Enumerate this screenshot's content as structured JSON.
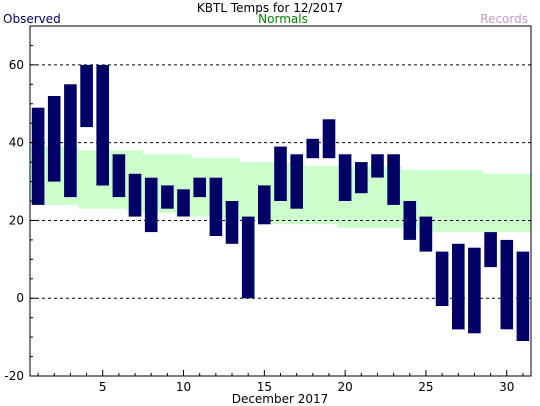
{
  "header": {
    "title": "KBTL Temps for 12/2017",
    "observed_label": "Observed",
    "normals_label": "Normals",
    "records_label": "Records"
  },
  "colors": {
    "observed": "#000066",
    "normals_band": "#ccffcc",
    "normals_text": "#008000",
    "records_text": "#cc99cc",
    "grid": "#000000"
  },
  "chart_data": {
    "type": "bar",
    "title": "KBTL Temps for 12/2017",
    "xlabel": "December 2017",
    "ylabel": "",
    "ylim": [
      -20,
      70
    ],
    "xlim": [
      0.5,
      31.5
    ],
    "y_ticks": [
      -20,
      0,
      20,
      40,
      60
    ],
    "x_tick_labels": [
      5,
      10,
      15,
      20,
      25,
      30
    ],
    "grid": "dashed horizontal lines at 20, 40, 60",
    "series": [
      {
        "name": "Observed",
        "type": "floating-bar",
        "days": [
          1,
          2,
          3,
          4,
          5,
          6,
          7,
          8,
          9,
          10,
          11,
          12,
          13,
          14,
          15,
          16,
          17,
          18,
          19,
          20,
          21,
          22,
          23,
          24,
          25,
          26,
          27,
          28,
          29,
          30,
          31
        ],
        "high": [
          49,
          52,
          55,
          60,
          60,
          37,
          32,
          31,
          29,
          28,
          31,
          31,
          25,
          21,
          29,
          39,
          37,
          41,
          46,
          37,
          35,
          37,
          37,
          25,
          21,
          12,
          14,
          13,
          17,
          15,
          12
        ],
        "low": [
          24,
          30,
          26,
          44,
          29,
          26,
          21,
          17,
          23,
          21,
          26,
          16,
          14,
          0,
          19,
          25,
          23,
          36,
          36,
          25,
          27,
          31,
          24,
          15,
          12,
          -2,
          -8,
          -9,
          8,
          -8,
          -11
        ]
      },
      {
        "name": "Normals",
        "type": "band",
        "days": [
          1,
          2,
          3,
          4,
          5,
          6,
          7,
          8,
          9,
          10,
          11,
          12,
          13,
          14,
          15,
          16,
          17,
          18,
          19,
          20,
          21,
          22,
          23,
          24,
          25,
          26,
          27,
          28,
          29,
          30,
          31
        ],
        "high": [
          39,
          39,
          39,
          38,
          38,
          38,
          38,
          37,
          37,
          37,
          36,
          36,
          36,
          35,
          35,
          35,
          35,
          34,
          34,
          34,
          34,
          34,
          34,
          33,
          33,
          33,
          33,
          33,
          32,
          32,
          32
        ],
        "low": [
          24,
          24,
          24,
          23,
          23,
          23,
          22,
          22,
          22,
          21,
          21,
          21,
          20,
          20,
          20,
          19,
          19,
          19,
          19,
          18,
          18,
          18,
          18,
          18,
          17,
          17,
          17,
          17,
          17,
          17,
          17
        ]
      }
    ]
  }
}
